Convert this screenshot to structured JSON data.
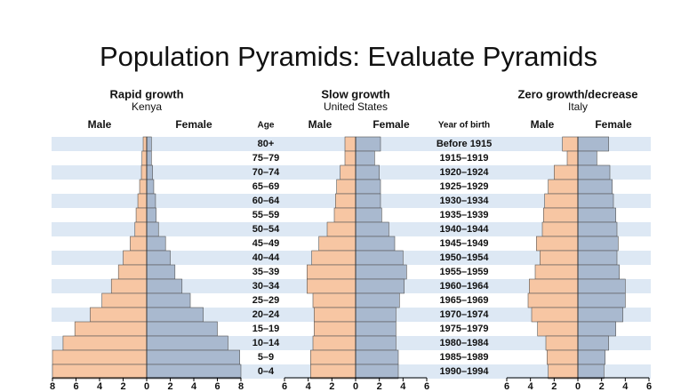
{
  "title": "Population Pyramids: Evaluate Pyramids",
  "chart_data": [
    {
      "type": "pyramid",
      "title": "Rapid growth",
      "subtitle": "Kenya",
      "y_label": "Age",
      "categories": [
        "80+",
        "75–79",
        "70–74",
        "65–69",
        "60–64",
        "55–59",
        "50–54",
        "45–49",
        "40–44",
        "35–39",
        "30–34",
        "25–29",
        "20–24",
        "15–19",
        "10–14",
        "5–9",
        "0–4"
      ],
      "series": [
        {
          "name": "Male",
          "color": "#f7c6a3",
          "values": [
            0.3,
            0.4,
            0.45,
            0.6,
            0.75,
            0.9,
            1.0,
            1.4,
            2.0,
            2.4,
            3.0,
            3.8,
            4.8,
            6.1,
            7.1,
            8.0,
            8.0
          ]
        },
        {
          "name": "Female",
          "color": "#a9b9cf",
          "values": [
            0.4,
            0.4,
            0.5,
            0.6,
            0.75,
            0.8,
            1.0,
            1.6,
            2.0,
            2.4,
            3.0,
            3.7,
            4.8,
            6.0,
            6.9,
            7.9,
            8.0
          ]
        }
      ],
      "xlim": [
        -8,
        8
      ],
      "xticks": [
        {
          "value": -8,
          "label": "8"
        },
        {
          "value": -6,
          "label": "6"
        },
        {
          "value": -4,
          "label": "4"
        },
        {
          "value": -2,
          "label": "2"
        },
        0,
        2,
        4,
        6,
        8
      ]
    },
    {
      "type": "pyramid",
      "title": "Slow growth",
      "subtitle": "United States",
      "y_label": "Year of birth",
      "row_labels": [
        "Before 1915",
        "1915–1919",
        "1920–1924",
        "1925–1929",
        "1930–1934",
        "1935–1939",
        "1940–1944",
        "1945–1949",
        "1950–1954",
        "1955–1959",
        "1960–1964",
        "1965–1969",
        "1970–1974",
        "1975–1979",
        "1980–1984",
        "1985–1989",
        "1990–1994"
      ],
      "series": [
        {
          "name": "Male",
          "color": "#f7c6a3",
          "values": [
            0.9,
            0.9,
            1.3,
            1.6,
            1.7,
            1.8,
            2.4,
            3.1,
            3.7,
            4.1,
            4.1,
            3.6,
            3.5,
            3.5,
            3.6,
            3.8,
            3.8
          ]
        },
        {
          "name": "Female",
          "color": "#a9b9cf",
          "values": [
            2.1,
            1.6,
            2.0,
            2.1,
            2.1,
            2.2,
            2.8,
            3.3,
            4.0,
            4.3,
            4.1,
            3.7,
            3.4,
            3.4,
            3.4,
            3.6,
            3.6
          ]
        }
      ],
      "xlim": [
        -6,
        6
      ],
      "xticks": [
        {
          "value": -6,
          "label": "6"
        },
        {
          "value": -4,
          "label": "4"
        },
        {
          "value": -2,
          "label": "2"
        },
        0,
        2,
        4,
        6
      ]
    },
    {
      "type": "pyramid",
      "title": "Zero growth/decrease",
      "subtitle": "Italy",
      "series": [
        {
          "name": "Male",
          "color": "#f7c6a3",
          "values": [
            1.3,
            0.9,
            2.0,
            2.5,
            2.8,
            2.9,
            3.0,
            3.5,
            3.2,
            3.6,
            4.1,
            4.2,
            3.9,
            3.4,
            2.7,
            2.6,
            2.5
          ]
        },
        {
          "name": "Female",
          "color": "#a9b9cf",
          "values": [
            2.6,
            1.6,
            2.7,
            2.9,
            3.0,
            3.2,
            3.3,
            3.4,
            3.3,
            3.5,
            4.0,
            4.0,
            3.8,
            3.2,
            2.6,
            2.3,
            2.2
          ]
        }
      ],
      "xlim": [
        -6,
        6
      ],
      "xticks": [
        {
          "value": -6,
          "label": "6"
        },
        {
          "value": -4,
          "label": "4"
        },
        {
          "value": -2,
          "label": "2"
        },
        0,
        2,
        4,
        6
      ]
    }
  ]
}
